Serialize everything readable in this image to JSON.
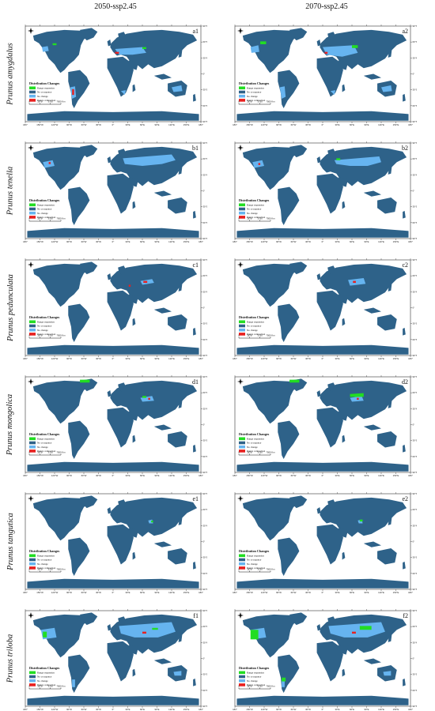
{
  "columns": [
    "2050-ssp2.45",
    "2070-ssp2.45"
  ],
  "legend": {
    "title": "Distribution Changes",
    "items": [
      {
        "label": "Range expansion",
        "color": "#22dd22"
      },
      {
        "label": "No occupancy",
        "color": "#2e6289"
      },
      {
        "label": "No change",
        "color": "#66b4f0"
      },
      {
        "label": "Range contraction",
        "color": "#e8201f"
      }
    ]
  },
  "scalebar": {
    "labels": [
      "0",
      "1875",
      "3750",
      "7500 Km"
    ]
  },
  "lon_ticks": [
    "180°",
    "150°W",
    "120°W",
    "90°W",
    "60°W",
    "30°W",
    "0°",
    "30°E",
    "60°E",
    "90°E",
    "120°E",
    "150°E",
    "180°"
  ],
  "lat_ticks": [
    "90°N",
    "60°N",
    "30°N",
    "0°",
    "30°S",
    "60°S",
    "90°S"
  ],
  "rows": [
    {
      "species": "Prunus amygdalus",
      "panels": [
        {
          "label": "a1"
        },
        {
          "label": "a2"
        }
      ]
    },
    {
      "species": "Prunus tenella",
      "panels": [
        {
          "label": "b1"
        },
        {
          "label": "b2"
        }
      ]
    },
    {
      "species": "Prunus pedunculata",
      "panels": [
        {
          "label": "c1"
        },
        {
          "label": "c2"
        }
      ]
    },
    {
      "species": "Prunus mongolica",
      "panels": [
        {
          "label": "d1"
        },
        {
          "label": "d2"
        }
      ]
    },
    {
      "species": "Prunus tangutica",
      "panels": [
        {
          "label": "e1"
        },
        {
          "label": "e2"
        }
      ]
    },
    {
      "species": "Prunus triloba",
      "panels": [
        {
          "label": "f1"
        },
        {
          "label": "f2"
        }
      ]
    }
  ]
}
